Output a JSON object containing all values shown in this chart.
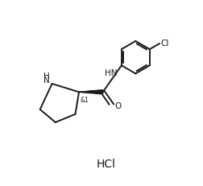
{
  "bg_color": "#ffffff",
  "line_color": "#1a1a1a",
  "line_width": 1.4,
  "font_size": 7.5,
  "hcl_font_size": 10,
  "hcl_text": "HCl",
  "NH_label": "HN",
  "O_label": "O",
  "N_label": "H\nN",
  "Cl_label": "Cl",
  "stereo_label": "&1",
  "figsize": [
    2.53,
    2.31
  ],
  "dpi": 100,
  "xlim": [
    0,
    10
  ],
  "ylim": [
    0,
    9.5
  ]
}
